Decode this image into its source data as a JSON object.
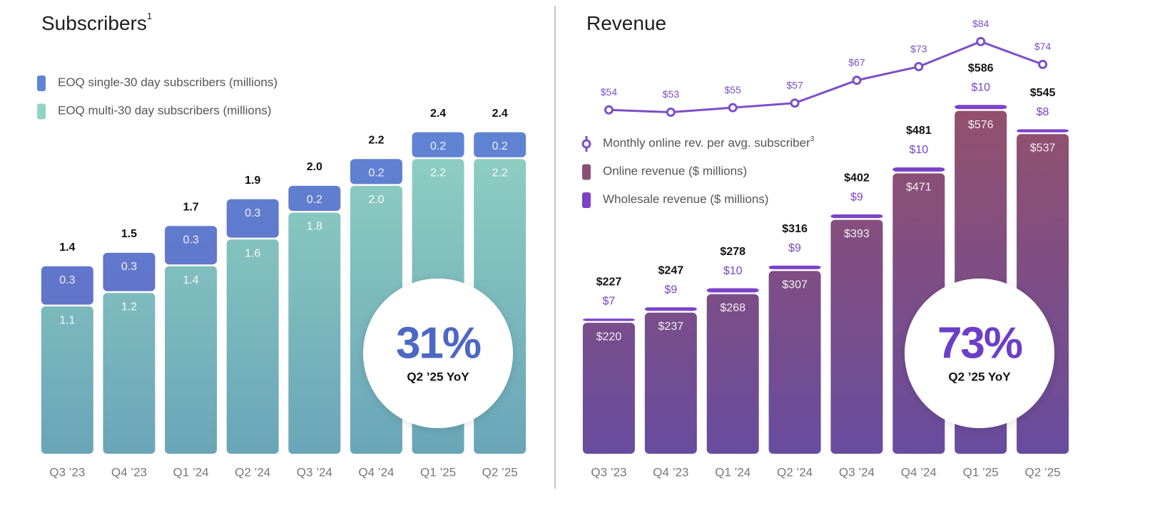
{
  "chart_data": [
    {
      "type": "bar",
      "stacked": true,
      "title": "Subscribers",
      "title_footnote": "1",
      "categories": [
        "Q3 ’23",
        "Q4 ’23",
        "Q1 ’24",
        "Q2 ’24",
        "Q3 ’24",
        "Q4 ’24",
        "Q1 ’25",
        "Q2 ’25"
      ],
      "series": [
        {
          "name": "EOQ single-30 day subscribers (millions)",
          "type": "bar",
          "gradient": [
            "#5f86d6",
            "#6366c0"
          ],
          "values": [
            0.3,
            0.3,
            0.3,
            0.3,
            0.2,
            0.2,
            0.2,
            0.2
          ]
        },
        {
          "name": "EOQ multi-30 day subscribers  (millions)",
          "type": "bar",
          "gradient": [
            "#94d4c3",
            "#6aa5b8"
          ],
          "values": [
            1.1,
            1.2,
            1.4,
            1.6,
            1.8,
            2,
            2.2,
            2.2
          ],
          "value_labels": [
            "1.1",
            "1.2",
            "1.4",
            "1.6",
            "1.8",
            "2.0",
            "2.2",
            "2.2"
          ]
        }
      ],
      "totals": [
        1.4,
        1.5,
        1.7,
        1.9,
        2,
        2.2,
        2.4,
        2.4
      ],
      "total_labels": [
        "1.4",
        "1.5",
        "1.7",
        "1.9",
        "2.0",
        "2.2",
        "2.4",
        "2.4"
      ],
      "ylim": [
        0,
        2.6
      ],
      "annotation": {
        "value": "31%",
        "label": "Q2 ’25 YoY",
        "color": "#4d67c3"
      }
    },
    {
      "type": "bar",
      "stacked": true,
      "title": "Revenue",
      "categories": [
        "Q3 ’23",
        "Q4 ’23",
        "Q1 ’24",
        "Q2 ’24",
        "Q3 ’24",
        "Q4 ’24",
        "Q1 ’25",
        "Q2 ’25"
      ],
      "series": [
        {
          "name": "Monthly online rev. per avg. subscriber",
          "name_footnote": "3",
          "type": "line",
          "axis": "y2",
          "color": "#7b4fc9",
          "values": [
            54,
            53,
            55,
            57,
            67,
            73,
            84,
            74
          ],
          "value_labels": [
            "$54",
            "$53",
            "$55",
            "$57",
            "$67",
            "$73",
            "$84",
            "$74"
          ]
        },
        {
          "name": "Online revenue ($ millions)",
          "type": "bar",
          "gradient": [
            "#9c5163",
            "#684c9e"
          ],
          "values": [
            220,
            237,
            268,
            307,
            393,
            471,
            576,
            537
          ],
          "value_labels": [
            "$220",
            "$237",
            "$268",
            "$307",
            "$393",
            "$471",
            "$576",
            "$537"
          ]
        },
        {
          "name": "Wholesale revenue ($ millions)",
          "type": "bar",
          "color": "#7a43c9",
          "values": [
            7,
            9,
            10,
            9,
            9,
            10,
            10,
            8
          ],
          "value_labels": [
            "$7",
            "$9",
            "$10",
            "$9",
            "$9",
            "$10",
            "$10",
            "$8"
          ]
        }
      ],
      "totals": [
        227,
        247,
        278,
        316,
        402,
        481,
        586,
        545
      ],
      "total_labels": [
        "$227",
        "$247",
        "$278",
        "$316",
        "$402",
        "$481",
        "$586",
        "$545"
      ],
      "ylim": [
        0,
        700
      ],
      "y2lim": [
        -97,
        86
      ],
      "annotation": {
        "value": "73%",
        "label": "Q2 ’25 YoY",
        "color": "#6c3ec8"
      }
    }
  ]
}
